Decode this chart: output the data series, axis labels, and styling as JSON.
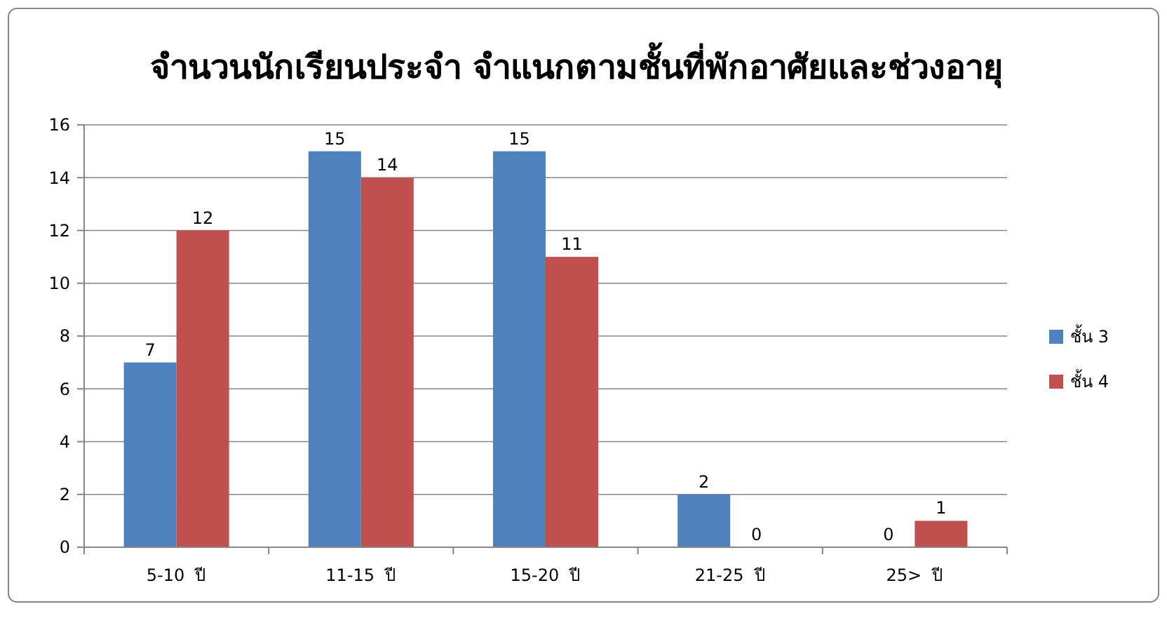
{
  "chart_data": {
    "type": "bar",
    "title": "จำนวนนักเรียนประจำ จำแนกตามชั้นที่พักอาศัยและช่วงอายุ",
    "categories": [
      "5-10  ปี",
      "11-15  ปี",
      "15-20  ปี",
      "21-25  ปี",
      "25>  ปี"
    ],
    "series": [
      {
        "name": "ชั้น 3",
        "color": "#4f81bd",
        "values": [
          7,
          15,
          15,
          2,
          0
        ]
      },
      {
        "name": "ชั้น 4",
        "color": "#c0504d",
        "values": [
          12,
          14,
          11,
          0,
          1
        ]
      }
    ],
    "ylim": [
      0,
      16
    ],
    "yticks": [
      0,
      2,
      4,
      6,
      8,
      10,
      12,
      14,
      16
    ],
    "grid": "y",
    "legend": "right",
    "data_labels": true
  }
}
